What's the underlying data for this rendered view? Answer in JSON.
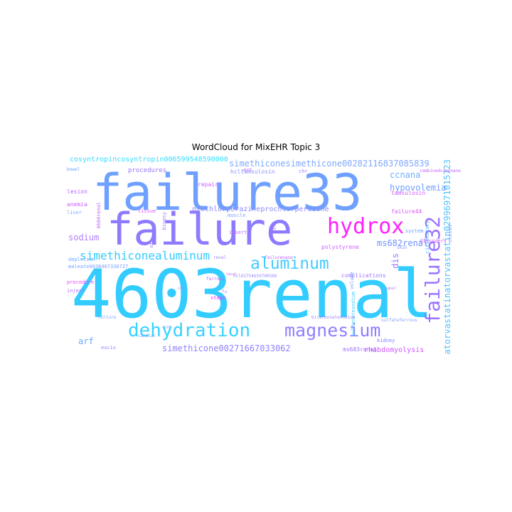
{
  "title": "WordCloud for MixEHR Topic 3",
  "words": [
    {
      "text": "failure33",
      "color": "#6fa0ff"
    },
    {
      "text": "failure",
      "color": "#8c7bff"
    },
    {
      "text": "4603renal",
      "color": "#33ccff"
    },
    {
      "text": "hydrox",
      "color": "#ff22ff"
    },
    {
      "text": "failure32",
      "color": "#9a73ff"
    },
    {
      "text": "dehydration",
      "color": "#3ad2ff"
    },
    {
      "text": "magnesium",
      "color": "#8f7fff"
    },
    {
      "text": "aluminum",
      "color": "#44ccff"
    },
    {
      "text": "simethiconealuminum",
      "color": "#33ccff"
    },
    {
      "text": "atorvastatinatorvastatin02996971015723",
      "color": "#52c2ff"
    },
    {
      "text": "cosyntropincosyntropin006599548590000",
      "color": "#33ddff"
    },
    {
      "text": "simethiconesimethicone00282116837085839",
      "color": "#7fa8ff"
    },
    {
      "text": "ccnana",
      "color": "#6fb0ff"
    },
    {
      "text": "hypovolemia",
      "color": "#6b9eff"
    },
    {
      "text": "sodium",
      "color": "#b07fff"
    },
    {
      "text": "ms682renal",
      "color": "#6f8fff"
    },
    {
      "text": "simethicone00271667033062",
      "color": "#8d82ff"
    },
    {
      "text": "arf",
      "color": "#66aaff"
    },
    {
      "text": "dis",
      "color": "#9d79ff"
    },
    {
      "text": "prochlorperazineprochlorperazine",
      "color": "#8a8aff"
    },
    {
      "text": "tamsulosin",
      "color": "#d15bff"
    },
    {
      "text": "failure44",
      "color": "#e055ff"
    },
    {
      "text": "hcltamsulosin",
      "color": "#8f8fff"
    },
    {
      "text": "polystyrene",
      "color": "#cf5dff"
    },
    {
      "text": "complications",
      "color": "#a077ff"
    },
    {
      "text": "ms683renal",
      "color": "#a072ff"
    },
    {
      "text": "rhabdomyolysis",
      "color": "#cc55ff"
    },
    {
      "text": "kidney",
      "color": "#8080ff"
    },
    {
      "text": "procedures",
      "color": "#9c76ff"
    },
    {
      "text": "repair",
      "color": "#ca5fff"
    },
    {
      "text": "lesion",
      "color": "#b36aff"
    },
    {
      "text": "anemia",
      "color": "#cc5cff"
    },
    {
      "text": "liver",
      "color": "#7faaff"
    },
    {
      "text": "4604renal",
      "color": "#c361ff"
    },
    {
      "text": "tissue",
      "color": "#d959ff"
    },
    {
      "text": "biopsy",
      "color": "#9e7cff"
    },
    {
      "text": "muscle",
      "color": "#7f9fff"
    },
    {
      "text": "insert",
      "color": "#bf6cff"
    },
    {
      "text": "oth",
      "color": "#9f7fff"
    },
    {
      "text": "depletion",
      "color": "#6faaff"
    },
    {
      "text": "maleate00384673367Z7",
      "color": "#7aa0ff"
    },
    {
      "text": "procedure",
      "color": "#ee44ff"
    },
    {
      "text": "inject",
      "color": "#b46fff"
    },
    {
      "text": "excis",
      "color": "#8f86ff"
    },
    {
      "text": "stage",
      "color": "#ff33ff"
    },
    {
      "text": "sulfonatesodium",
      "color": "#44ccff"
    },
    {
      "text": "volume",
      "color": "#7aa4ff"
    },
    {
      "text": "disorders",
      "color": "#cc5fff"
    },
    {
      "text": "circulatory",
      "color": "#55bbff"
    },
    {
      "text": "system",
      "color": "#6a9fff"
    },
    {
      "text": "closed",
      "color": "#7a99ff"
    },
    {
      "text": "chr",
      "color": "#9f7fff"
    },
    {
      "text": "ext",
      "color": "#b070ff"
    },
    {
      "text": "bowel",
      "color": "#6fa0ff"
    },
    {
      "text": "skin",
      "color": "#7a96ff"
    },
    {
      "text": "ext",
      "color": "#c666ff"
    },
    {
      "text": "failurenana",
      "color": "#c460ff"
    },
    {
      "text": "ncl02754659700580",
      "color": "#9b8bff"
    },
    {
      "text": "ferrous",
      "color": "#bb66ff"
    },
    {
      "text": "fu",
      "color": "#9b8bff"
    },
    {
      "text": "culture",
      "color": "#7fa0ff"
    },
    {
      "text": "cardiac",
      "color": "#6fa8ff"
    },
    {
      "text": "bicarbonatesodium",
      "color": "#a08bff"
    },
    {
      "text": "sulfateferrous",
      "color": "#7fa0ff"
    },
    {
      "text": "combinedsimenana",
      "color": "#c060ff"
    },
    {
      "text": "renal",
      "color": "#9a86ff"
    },
    {
      "text": "nasal",
      "color": "#cf66ff"
    },
    {
      "text": "sgnel",
      "color": "#bb6fff"
    },
    {
      "text": "oth",
      "color": "#9f88ff"
    },
    {
      "text": "int",
      "color": "#7f9bff"
    }
  ]
}
